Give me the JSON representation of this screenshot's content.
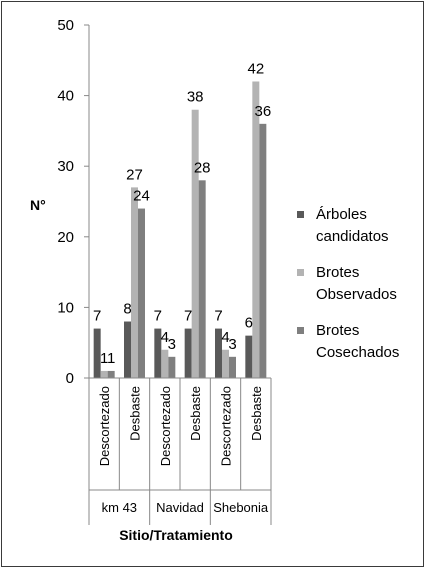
{
  "chart_data": {
    "type": "bar",
    "title": "",
    "xlabel": "Sitio/Tratamiento",
    "ylabel": "N°",
    "ylim": [
      0,
      50
    ],
    "yticks": [
      0,
      10,
      20,
      30,
      40,
      50
    ],
    "grid": false,
    "legend_position": "right",
    "groups": [
      {
        "label": "km 43",
        "categories": [
          "Descortezado",
          "Desbaste"
        ]
      },
      {
        "label": "Navidad",
        "categories": [
          "Descortezado",
          "Desbaste"
        ]
      },
      {
        "label": "Shebonia",
        "categories": [
          "Descortezado",
          "Desbaste"
        ]
      }
    ],
    "categories": [
      "Descortezado",
      "Desbaste",
      "Descortezado",
      "Desbaste",
      "Descortezado",
      "Desbaste"
    ],
    "series": [
      {
        "name": "Árboles candidatos",
        "legend_lines": [
          "Árboles",
          "candidatos"
        ],
        "color": "#595959",
        "values": [
          7,
          8,
          7,
          7,
          7,
          6
        ]
      },
      {
        "name": "Brotes Observados",
        "legend_lines": [
          "Brotes",
          "Observados"
        ],
        "color": "#b3b3b3",
        "values": [
          1,
          27,
          4,
          38,
          4,
          42
        ]
      },
      {
        "name": "Brotes Cosechados",
        "legend_lines": [
          "Brotes",
          "Cosechados"
        ],
        "color": "#7f7f7f",
        "values": [
          1,
          24,
          3,
          28,
          3,
          36
        ]
      }
    ]
  }
}
